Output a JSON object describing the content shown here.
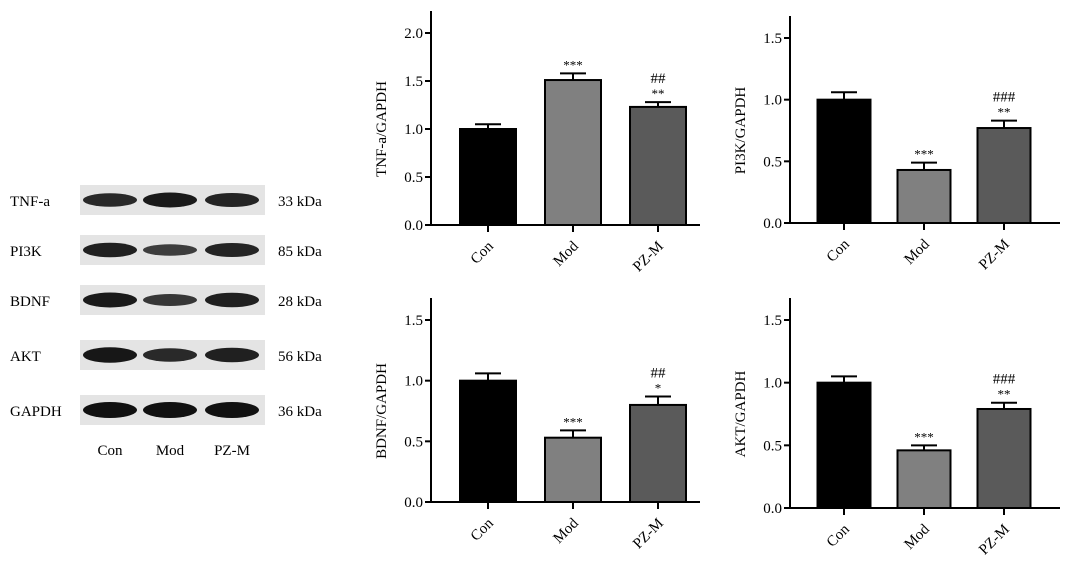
{
  "blot": {
    "rows": [
      {
        "label": "TNF-a",
        "size": "33 kDa",
        "intensity": [
          0.75,
          0.9,
          0.8
        ]
      },
      {
        "label": "PI3K",
        "size": "85 kDa",
        "intensity": [
          0.85,
          0.55,
          0.8
        ]
      },
      {
        "label": "BDNF",
        "size": "28 kDa",
        "intensity": [
          0.9,
          0.6,
          0.85
        ]
      },
      {
        "label": "AKT",
        "size": "56 kDa",
        "intensity": [
          0.95,
          0.75,
          0.85
        ]
      },
      {
        "label": "GAPDH",
        "size": "36 kDa",
        "intensity": [
          1.0,
          1.0,
          1.0
        ]
      }
    ],
    "lanes": [
      "Con",
      "Mod",
      "PZ-M"
    ]
  },
  "chart_data": [
    {
      "type": "bar",
      "ylabel": "TNF-a/GAPDH",
      "categories": [
        "Con",
        "Mod",
        "PZ-M"
      ],
      "values": [
        1.0,
        1.51,
        1.23
      ],
      "errors": [
        0.05,
        0.07,
        0.05
      ],
      "annotations": [
        [
          "",
          ""
        ],
        [
          "***",
          ""
        ],
        [
          "**",
          "##"
        ]
      ],
      "ylim": [
        0,
        2.0
      ],
      "yticks": [
        "0.0",
        "0.5",
        "1.0",
        "1.5",
        "2.0"
      ]
    },
    {
      "type": "bar",
      "ylabel": "PI3K/GAPDH",
      "categories": [
        "Con",
        "Mod",
        "PZ-M"
      ],
      "values": [
        1.0,
        0.43,
        0.77
      ],
      "errors": [
        0.06,
        0.06,
        0.06
      ],
      "annotations": [
        [
          "",
          ""
        ],
        [
          "***",
          ""
        ],
        [
          "**",
          "###"
        ]
      ],
      "ylim": [
        0,
        1.5
      ],
      "yticks": [
        "0.0",
        "0.5",
        "1.0",
        "1.5"
      ]
    },
    {
      "type": "bar",
      "ylabel": "BDNF/GAPDH",
      "categories": [
        "Con",
        "Mod",
        "PZ-M"
      ],
      "values": [
        1.0,
        0.53,
        0.8
      ],
      "errors": [
        0.06,
        0.06,
        0.07
      ],
      "annotations": [
        [
          "",
          ""
        ],
        [
          "***",
          ""
        ],
        [
          "*",
          "##"
        ]
      ],
      "ylim": [
        0,
        1.5
      ],
      "yticks": [
        "0.0",
        "0.5",
        "1.0",
        "1.5"
      ]
    },
    {
      "type": "bar",
      "ylabel": "AKT/GAPDH",
      "categories": [
        "Con",
        "Mod",
        "PZ-M"
      ],
      "values": [
        1.0,
        0.46,
        0.79
      ],
      "errors": [
        0.05,
        0.04,
        0.05
      ],
      "annotations": [
        [
          "",
          ""
        ],
        [
          "***",
          ""
        ],
        [
          "**",
          "###"
        ]
      ],
      "ylim": [
        0,
        1.5
      ],
      "yticks": [
        "0.0",
        "0.5",
        "1.0",
        "1.5"
      ]
    }
  ],
  "colors": {
    "bars": [
      "#000000",
      "#808080",
      "#5a5a5a"
    ]
  }
}
